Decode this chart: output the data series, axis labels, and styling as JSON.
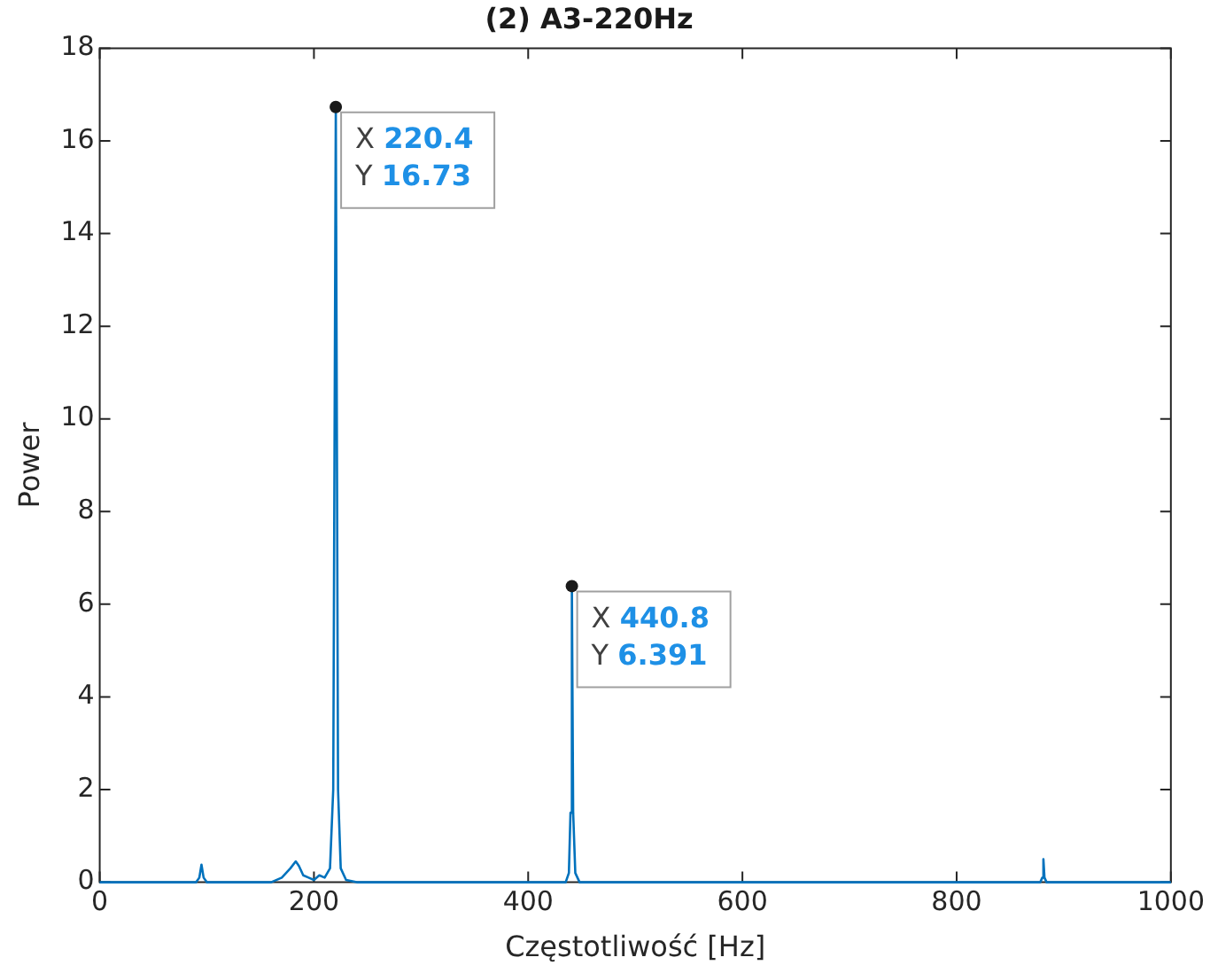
{
  "chart_data": {
    "type": "line",
    "title": "(2) A3-220Hz",
    "xlabel": "Częstotliwość [Hz]",
    "ylabel": "Power",
    "x": [
      0,
      90,
      93,
      95,
      97,
      100,
      160,
      170,
      178,
      183,
      186,
      190,
      195,
      200,
      205,
      210,
      215,
      218,
      220.4,
      222.5,
      225,
      230,
      240,
      435,
      438,
      439.5,
      440.8,
      442,
      444,
      448,
      878,
      880,
      881,
      882,
      884,
      1000
    ],
    "series": [
      {
        "color": "#0072bd",
        "values": [
          0,
          0,
          0.1,
          0.38,
          0.1,
          0,
          0,
          0.1,
          0.3,
          0.45,
          0.35,
          0.15,
          0.1,
          0.05,
          0.15,
          0.1,
          0.3,
          2,
          16.73,
          2,
          0.3,
          0.05,
          0,
          0,
          0.2,
          1.5,
          6.391,
          1.5,
          0.2,
          0,
          0,
          0.1,
          0.5,
          0.1,
          0,
          0
        ]
      }
    ],
    "xlim": [
      0,
      1000
    ],
    "xticks": [
      0,
      200,
      400,
      600,
      800,
      1000
    ],
    "ylim": [
      0,
      18
    ],
    "yticks": [
      0,
      2,
      4,
      6,
      8,
      10,
      12,
      14,
      16,
      18
    ],
    "grid": false,
    "legend": false,
    "marker": "none",
    "line_style": "solid",
    "annotations": [
      {
        "text": "X 220.4\nY 16.73",
        "x": 220.4,
        "y": 16.73
      },
      {
        "text": "X 440.8\nY 6.391",
        "x": 440.8,
        "y": 6.391
      }
    ]
  }
}
